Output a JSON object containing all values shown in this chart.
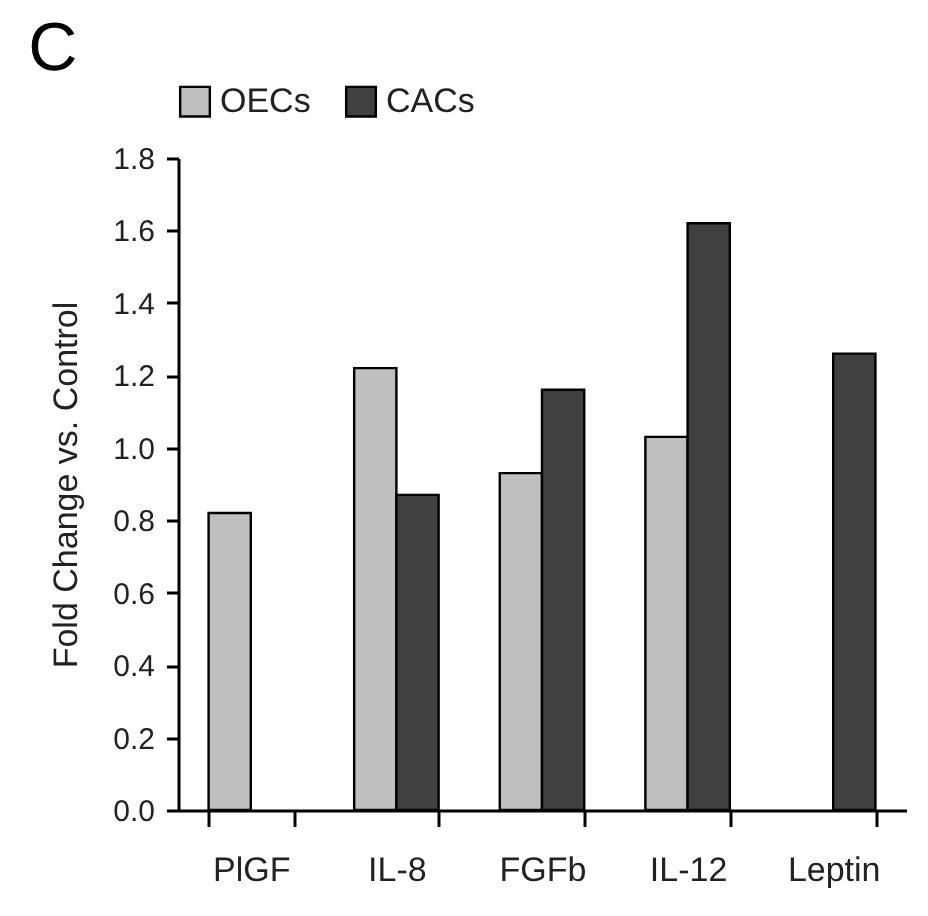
{
  "chart_data": {
    "type": "bar",
    "title": "C",
    "ylabel": "Fold Change vs. Control",
    "categories": [
      "PlGF",
      "IL-8",
      "FGFb",
      "IL-12",
      "Leptin"
    ],
    "series": [
      {
        "name": "OECs",
        "color": "#bfbfbf",
        "values": [
          0.82,
          1.22,
          0.93,
          1.03,
          null
        ]
      },
      {
        "name": "CACs",
        "color": "#404040",
        "values": [
          null,
          0.87,
          1.16,
          1.62,
          1.26
        ]
      }
    ],
    "ylim": [
      0,
      1.8
    ],
    "yticks": [
      {
        "value": 0,
        "label": "0.0"
      },
      {
        "value": 0.2,
        "label": "0.2"
      },
      {
        "value": 0.4,
        "label": "0.4"
      },
      {
        "value": 0.6,
        "label": "0.6"
      },
      {
        "value": 0.8,
        "label": "0.8"
      },
      {
        "value": 1.0,
        "label": "1.0"
      },
      {
        "value": 1.2,
        "label": "1.2"
      },
      {
        "value": 1.4,
        "label": "1.4"
      },
      {
        "value": 1.6,
        "label": "1.6"
      },
      {
        "value": 1.8,
        "label": "1.8"
      }
    ],
    "legend": "top",
    "grid": false
  }
}
